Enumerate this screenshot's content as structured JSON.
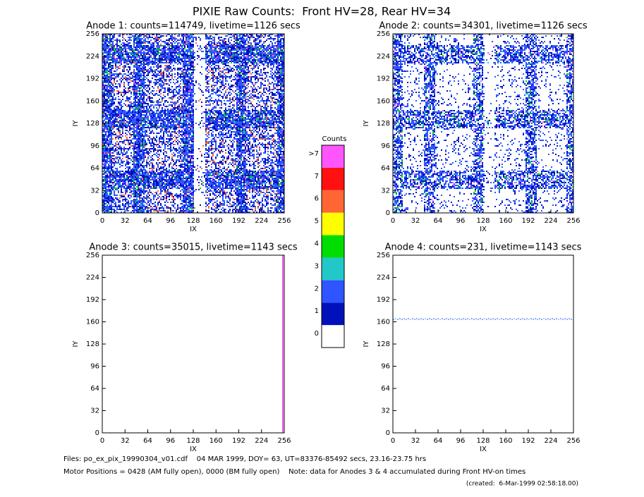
{
  "page_title": "PIXIE Raw Counts:  Front HV=28, Rear HV=34",
  "chart_data": [
    {
      "type": "heatmap",
      "title": "Anode 1: counts=114749, livetime=1126 secs",
      "xlabel": "IX",
      "ylabel": "IY",
      "xlim": [
        0,
        256
      ],
      "ylim": [
        0,
        256
      ],
      "xticks": [
        0,
        32,
        64,
        96,
        128,
        160,
        192,
        224,
        256
      ],
      "yticks": [
        0,
        32,
        64,
        96,
        128,
        160,
        192,
        224,
        256
      ]
    },
    {
      "type": "heatmap",
      "title": "Anode 2: counts=34301, livetime=1126 secs",
      "xlabel": "IX",
      "ylabel": "IY",
      "xlim": [
        0,
        256
      ],
      "ylim": [
        0,
        256
      ],
      "xticks": [
        0,
        32,
        64,
        96,
        128,
        160,
        192,
        224,
        256
      ],
      "yticks": [
        0,
        32,
        64,
        96,
        128,
        160,
        192,
        224,
        256
      ]
    },
    {
      "type": "heatmap",
      "title": "Anode 3: counts=35015, livetime=1143 secs",
      "xlabel": "IX",
      "ylabel": "IY",
      "xlim": [
        0,
        256
      ],
      "ylim": [
        0,
        256
      ],
      "xticks": [
        0,
        32,
        64,
        96,
        128,
        160,
        192,
        224,
        256
      ],
      "yticks": [
        0,
        32,
        64,
        96,
        128,
        160,
        192,
        224,
        256
      ]
    },
    {
      "type": "heatmap",
      "title": "Anode 4: counts=231, livetime=1143 secs",
      "xlabel": "IX",
      "ylabel": "IY",
      "xlim": [
        0,
        256
      ],
      "ylim": [
        0,
        256
      ],
      "xticks": [
        0,
        32,
        64,
        96,
        128,
        160,
        192,
        224,
        256
      ],
      "yticks": [
        0,
        32,
        64,
        96,
        128,
        160,
        192,
        224,
        256
      ]
    }
  ],
  "colorbar": {
    "title": "Counts",
    "levels": [
      0,
      1,
      2,
      3,
      4,
      5,
      6,
      7,
      ">7"
    ],
    "colors": [
      "#ffffff",
      "#0011bb",
      "#2e55ff",
      "#22c8c8",
      "#00dd00",
      "#ffff00",
      "#ff6633",
      "#ff1111",
      "#ff55ff"
    ]
  },
  "footer": {
    "files": "Files: po_ex_pix_19990304_v01.cdf    04 MAR 1999, DOY= 63, UT=83376-85492 secs, 23.16-23.75 hrs",
    "motor": "Motor Positions = 0428 (AM fully open), 0000 (BM fully open)    Note: data for Anodes 3 & 4 accumulated during Front HV-on times",
    "created": "(created:  6-Mar-1999 02:58:18.00)"
  }
}
